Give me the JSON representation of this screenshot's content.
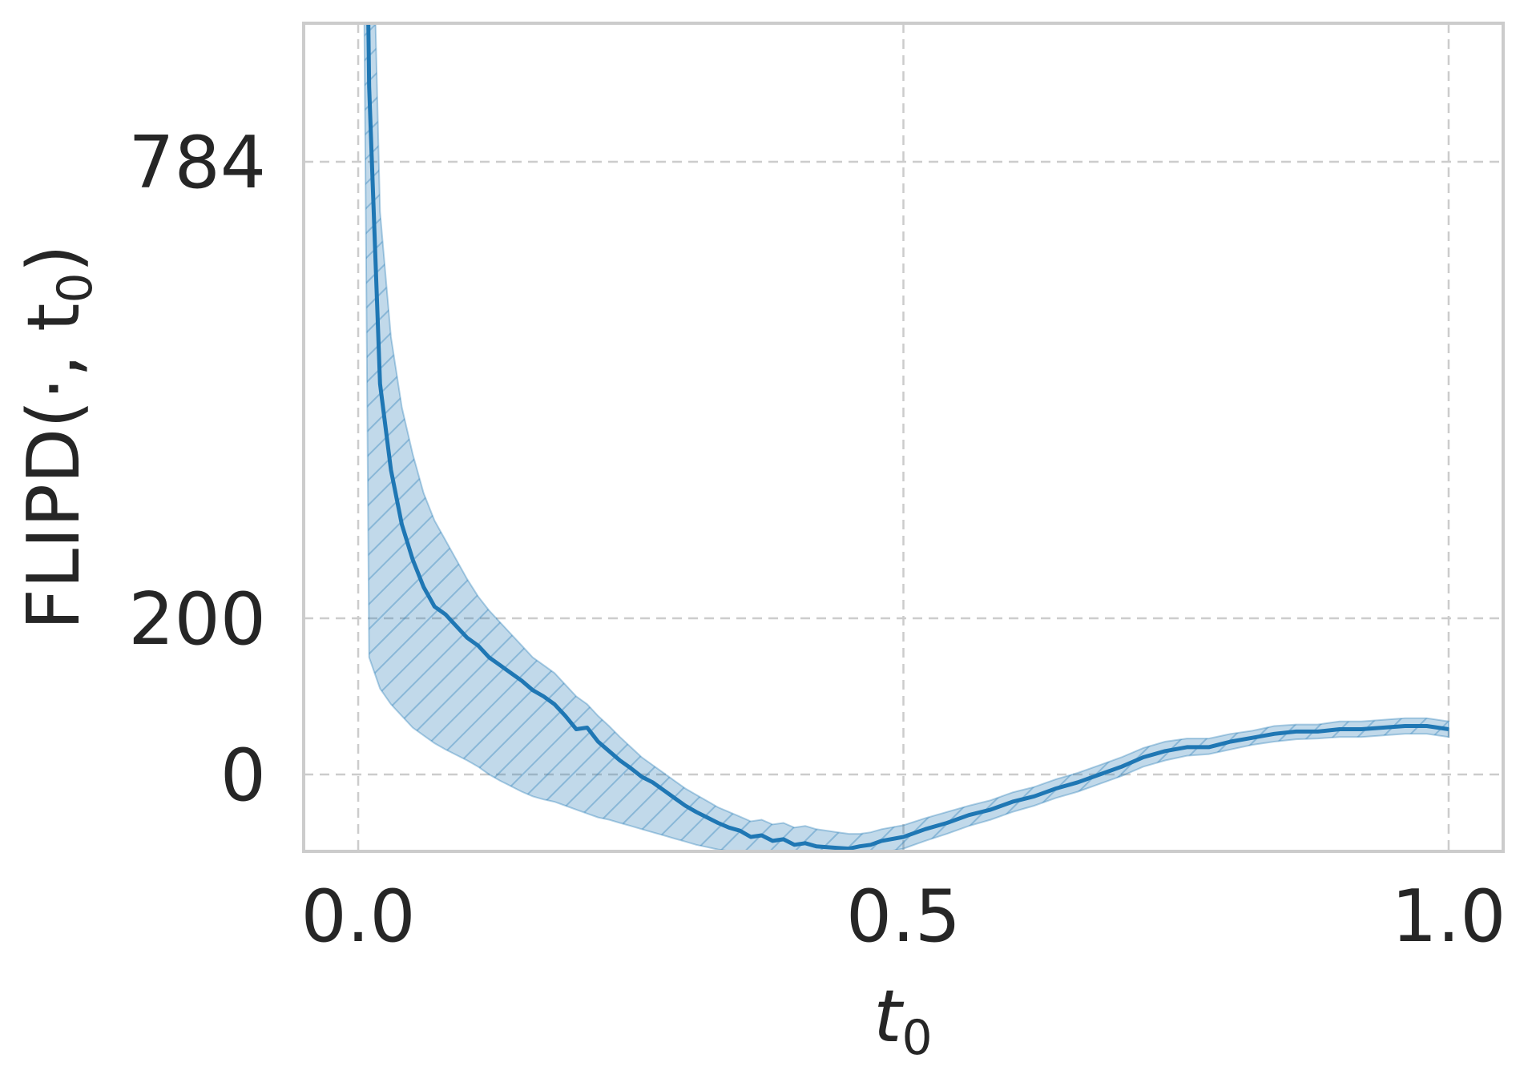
{
  "chart_data": {
    "type": "line",
    "title": "",
    "xlabel": "t",
    "xlabel_sub": "0",
    "ylabel": "FLIPD(·, t",
    "ylabel_sub": "0",
    "ylabel_close": ")",
    "xlim": [
      -0.05,
      1.05
    ],
    "ylim": [
      -250,
      2050
    ],
    "grid": true,
    "legend": "none",
    "xticks": [
      {
        "value": 0.0,
        "label": "0.0"
      },
      {
        "value": 0.5,
        "label": "0.5"
      },
      {
        "value": 1.0,
        "label": "1.0"
      }
    ],
    "yticks": [
      {
        "value": 0,
        "label": "0"
      },
      {
        "value": 200,
        "label": "200"
      },
      {
        "value": 784,
        "label": "784"
      }
    ],
    "colors": {
      "line": "#1f77b4",
      "band": "#1f77b4",
      "grid": "#cccccc",
      "text": "#262626"
    },
    "series": [
      {
        "x": [
          0.0,
          0.01,
          0.02,
          0.03,
          0.04,
          0.05,
          0.06,
          0.07,
          0.08,
          0.09,
          0.1,
          0.11,
          0.12,
          0.13,
          0.14,
          0.15,
          0.16,
          0.17,
          0.18,
          0.19,
          0.2,
          0.21,
          0.22,
          0.23,
          0.24,
          0.25,
          0.26,
          0.27,
          0.28,
          0.29,
          0.3,
          0.31,
          0.32,
          0.33,
          0.34,
          0.35,
          0.36,
          0.37,
          0.38,
          0.39,
          0.4,
          0.41,
          0.42,
          0.43,
          0.44,
          0.45,
          0.46,
          0.47,
          0.48,
          0.5,
          0.52,
          0.54,
          0.56,
          0.58,
          0.6,
          0.62,
          0.64,
          0.66,
          0.68,
          0.7,
          0.72,
          0.74,
          0.76,
          0.78,
          0.8,
          0.82,
          0.84,
          0.86,
          0.88,
          0.9,
          0.92,
          0.94,
          0.96,
          0.98,
          1.0
        ],
        "y": [
          1980,
          880,
          500,
          390,
          320,
          275,
          240,
          215,
          205,
          190,
          175,
          165,
          150,
          140,
          130,
          120,
          108,
          100,
          90,
          75,
          58,
          60,
          42,
          30,
          18,
          8,
          -3,
          -10,
          -20,
          -30,
          -40,
          -48,
          -55,
          -62,
          -68,
          -72,
          -80,
          -78,
          -85,
          -83,
          -90,
          -88,
          -92,
          -93,
          -94,
          -95,
          -92,
          -90,
          -85,
          -80,
          -70,
          -62,
          -52,
          -45,
          -35,
          -28,
          -18,
          -10,
          0,
          10,
          22,
          30,
          35,
          35,
          42,
          47,
          52,
          55,
          55,
          58,
          58,
          60,
          62,
          62,
          58
        ],
        "lower": [
          2000,
          150,
          110,
          90,
          75,
          60,
          50,
          40,
          32,
          25,
          18,
          10,
          0,
          -8,
          -15,
          -22,
          -28,
          -32,
          -35,
          -40,
          -45,
          -50,
          -55,
          -58,
          -62,
          -66,
          -70,
          -74,
          -78,
          -82,
          -86,
          -90,
          -93,
          -96,
          -98,
          -100,
          -102,
          -103,
          -104,
          -105,
          -106,
          -106,
          -107,
          -108,
          -108,
          -108,
          -106,
          -104,
          -100,
          -95,
          -85,
          -76,
          -66,
          -58,
          -48,
          -40,
          -30,
          -22,
          -12,
          -2,
          10,
          18,
          24,
          26,
          32,
          38,
          42,
          45,
          46,
          48,
          48,
          50,
          52,
          52,
          48
        ],
        "upper": [
          2050,
          1300,
          720,
          560,
          470,
          410,
          360,
          325,
          300,
          275,
          250,
          228,
          210,
          195,
          180,
          165,
          150,
          140,
          130,
          115,
          100,
          90,
          75,
          62,
          48,
          35,
          22,
          12,
          2,
          -8,
          -18,
          -26,
          -34,
          -42,
          -48,
          -54,
          -60,
          -58,
          -64,
          -62,
          -68,
          -66,
          -70,
          -72,
          -74,
          -76,
          -76,
          -74,
          -70,
          -65,
          -56,
          -48,
          -40,
          -33,
          -23,
          -16,
          -6,
          2,
          12,
          22,
          34,
          42,
          46,
          46,
          52,
          56,
          62,
          64,
          64,
          68,
          68,
          70,
          72,
          72,
          68
        ]
      }
    ]
  }
}
